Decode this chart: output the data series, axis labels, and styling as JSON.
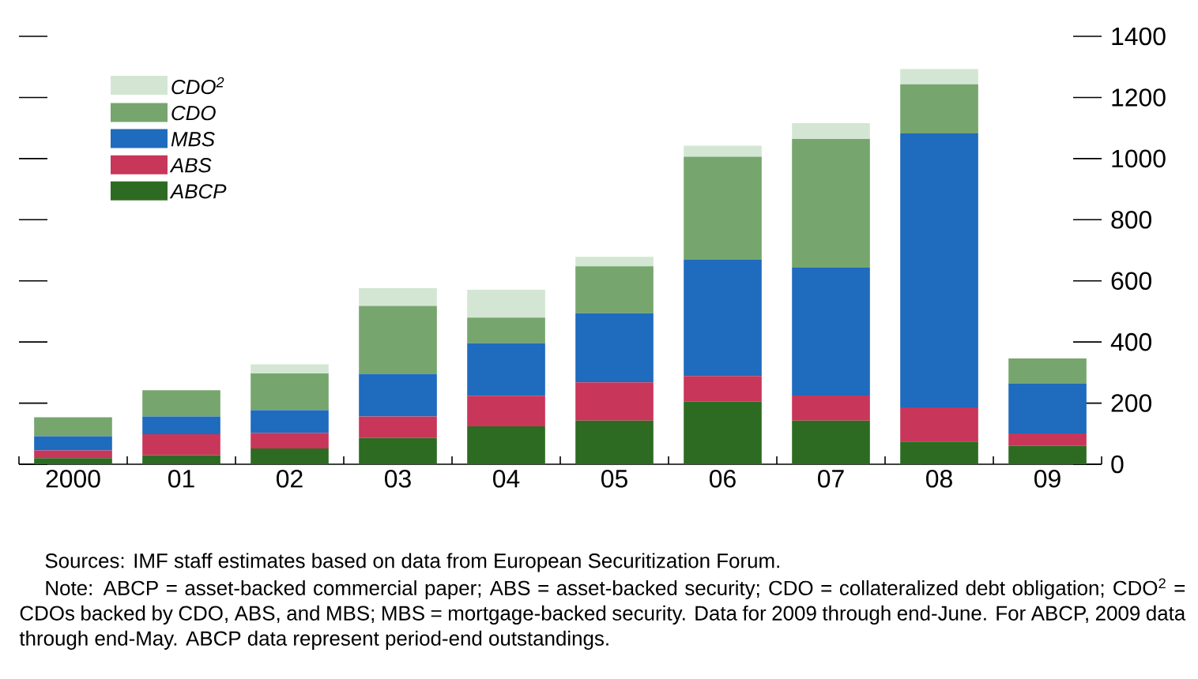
{
  "chart_data": {
    "type": "bar",
    "stacked": true,
    "categories": [
      "2000",
      "01",
      "02",
      "03",
      "04",
      "05",
      "06",
      "07",
      "08",
      "09"
    ],
    "series": [
      {
        "name": "ABCP",
        "color": "#2e6b22",
        "values": [
          20,
          30,
          52,
          86,
          124,
          143,
          205,
          143,
          74,
          60
        ]
      },
      {
        "name": "ABS",
        "color": "#c8365a",
        "values": [
          25,
          68,
          51,
          70,
          100,
          125,
          84,
          82,
          112,
          41
        ]
      },
      {
        "name": "MBS",
        "color": "#1f6bbd",
        "values": [
          47,
          58,
          74,
          140,
          172,
          226,
          380,
          418,
          896,
          164
        ]
      },
      {
        "name": "CDO",
        "color": "#76a66e",
        "values": [
          62,
          86,
          120,
          222,
          84,
          154,
          337,
          421,
          161,
          81
        ]
      },
      {
        "name": "CDO$^{2}$",
        "color": "#d3e6d3",
        "values": [
          0,
          0,
          30,
          58,
          91,
          31,
          36,
          52,
          50,
          0
        ]
      }
    ],
    "ylim": [
      0,
      1400
    ],
    "yticks": [
      0,
      200,
      400,
      600,
      800,
      1000,
      1200,
      1400
    ],
    "legend": "top left",
    "annotations": [
      "Sources: IMF staff estimates based on data from European Securitization Forum.",
      "Note: ABCP = asset-backed commercial paper; ABS = asset-backed security; CDO = collateralized debt obligation; CDO$^{2}$ = CDOs backed by CDO, ABS, and MBS; MBS = mortgage-backed security. Data for 2009 through end-June. For ABCP, 2009 data through end-May. ABCP data represent period-end outstandings."
    ]
  }
}
